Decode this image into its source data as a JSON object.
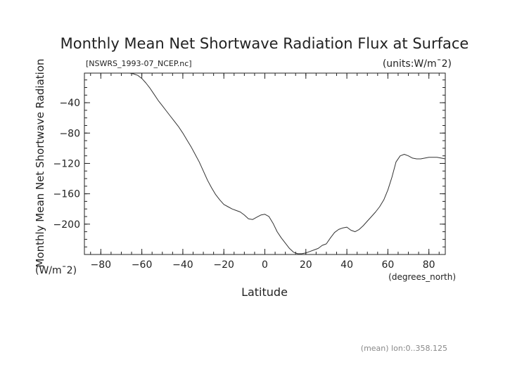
{
  "chart_data": {
    "type": "line",
    "title": "Monthly Mean Net Shortwave Radiation Flux at Surface",
    "file_label": "[NSWRS_1993-07_NCEP.nc]",
    "units_label": "(units:W/m¯2)",
    "ylabel": "Monthly Mean Net Shortwave Radiation",
    "ylabel_units": "(W/m¯2)",
    "xlabel": "Latitude",
    "xlabel_units": "(degrees_north)",
    "footer": "(mean) lon:0..358.125",
    "xlim": [
      -88,
      88
    ],
    "ylim": [
      -240,
      -1
    ],
    "x_ticks": [
      -80,
      -60,
      -40,
      -20,
      0,
      20,
      40,
      60,
      80
    ],
    "y_ticks": [
      -40,
      -80,
      -120,
      -160,
      -200
    ],
    "x_minor_step": 5,
    "y_minor_step": 10,
    "series": [
      {
        "color": "#333333",
        "x": [
          -66,
          -64,
          -62,
          -60,
          -58,
          -56,
          -54,
          -52,
          -50,
          -48,
          -46,
          -44,
          -42,
          -40,
          -38,
          -36,
          -34,
          -32,
          -30,
          -28,
          -26,
          -24,
          -22,
          -20,
          -18,
          -16,
          -14,
          -12,
          -10,
          -8,
          -6,
          -4,
          -2,
          0,
          2,
          4,
          6,
          8,
          10,
          12,
          14,
          16,
          18,
          20,
          22,
          24,
          26,
          28,
          30,
          32,
          34,
          36,
          38,
          40,
          42,
          44,
          46,
          48,
          50,
          52,
          54,
          56,
          58,
          60,
          62,
          64,
          66,
          68,
          70,
          72,
          74,
          76,
          78,
          80,
          82,
          84,
          86,
          88
        ],
        "y": [
          -1,
          -2,
          -4,
          -8,
          -14,
          -21,
          -29,
          -37,
          -44,
          -51,
          -58,
          -65,
          -72,
          -80,
          -89,
          -98,
          -108,
          -118,
          -130,
          -142,
          -152,
          -161,
          -168,
          -174,
          -177,
          -180,
          -182,
          -184,
          -188,
          -193,
          -194,
          -191,
          -188,
          -187,
          -190,
          -199,
          -210,
          -218,
          -225,
          -232,
          -237,
          -239,
          -239,
          -238,
          -236,
          -234,
          -232,
          -228,
          -226,
          -218,
          -211,
          -207,
          -205,
          -204,
          -208,
          -210,
          -207,
          -202,
          -196,
          -190,
          -184,
          -177,
          -168,
          -155,
          -138,
          -118,
          -110,
          -108,
          -110,
          -113,
          -114,
          -114,
          -113,
          -112,
          -112,
          -112,
          -113,
          -114
        ]
      }
    ]
  }
}
